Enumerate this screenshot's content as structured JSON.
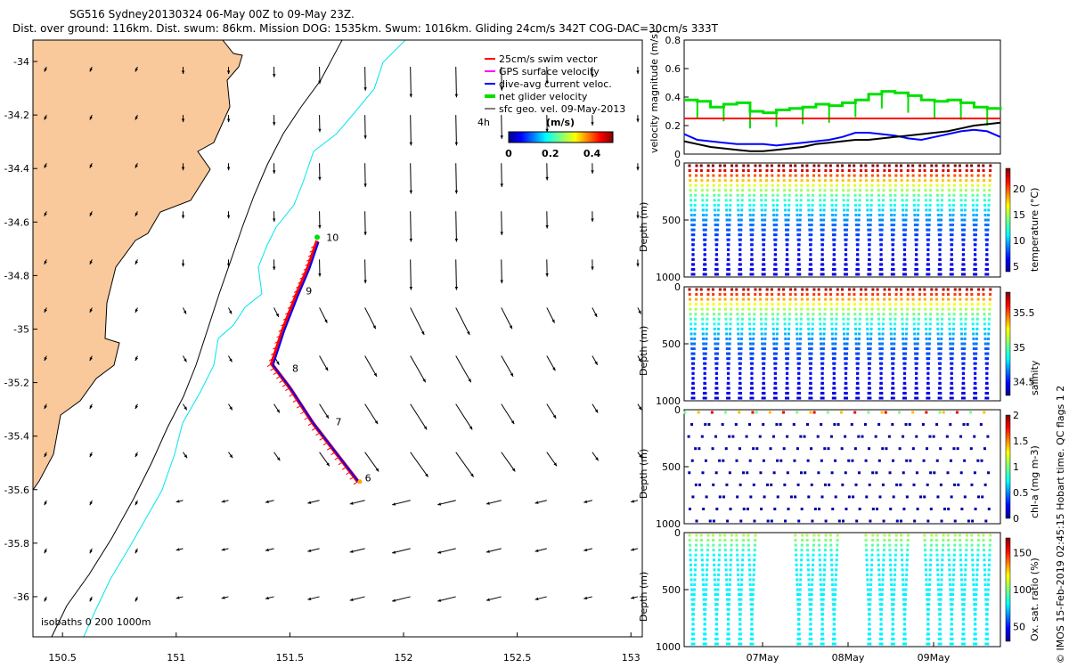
{
  "header": {
    "title": "SG516 Sydney20130324 06-May 00Z to 09-May 23Z.",
    "subtitle": "Dist. over ground: 116km. Dist. swum: 86km. Mission DOG: 1535km. Swum: 1016km. Gliding 24cm/s 342T COG-DAC=30cm/s 333T"
  },
  "credit": "© IMOS 15-Feb-2019 02:45:15 Hobart time. QC flags 1  2",
  "colors": {
    "land": "#f9c99b",
    "coast_line": "#000000",
    "isobath_200": "#000000",
    "isobath_1000": "#00e5ee",
    "swim": "#ff0000",
    "gps": "#ff00ff",
    "dac": "#0000ff",
    "net": "#00e000",
    "sfc": "#000000"
  },
  "map": {
    "legend": [
      {
        "label": "25cm/s swim vector",
        "color": "#ff0000"
      },
      {
        "label": "GPS surface velocity",
        "color": "#ff00ff"
      },
      {
        "label": "dive-avg current veloc.",
        "color": "#0000ff"
      },
      {
        "label": "net glider velocity",
        "color": "#00e000"
      },
      {
        "label": "sfc geo. vel. 09-May-2013",
        "color": "#000000"
      }
    ],
    "colorbar": {
      "label": "(m/s)",
      "ticks": [
        "0",
        "0.2",
        "0.4"
      ],
      "range": [
        0,
        0.5
      ]
    },
    "label_4h": "4h",
    "isobath_text": "isobaths 0   200  1000m",
    "day_labels": [
      {
        "label": "6",
        "lon": 151.83,
        "lat": -35.57
      },
      {
        "label": "7",
        "lon": 151.7,
        "lat": -35.36
      },
      {
        "label": "8",
        "lon": 151.51,
        "lat": -35.16
      },
      {
        "label": "9",
        "lon": 151.57,
        "lat": -34.87
      },
      {
        "label": "10",
        "lon": 151.66,
        "lat": -34.67
      }
    ]
  },
  "chart_data": [
    {
      "type": "scatter",
      "name": "map",
      "xlim": [
        150.37,
        153.05
      ],
      "ylim": [
        -36.15,
        -33.92
      ],
      "x_ticks": [
        "150.5",
        "151",
        "151.5",
        "152",
        "152.5",
        "153"
      ],
      "y_ticks": [
        "-34",
        "-34.2",
        "-34.4",
        "-34.6",
        "-34.8",
        "-35",
        "-35.2",
        "-35.4",
        "-35.6",
        "-35.8",
        "-36"
      ],
      "glider_track": [
        [
          151.8,
          -35.57
        ],
        [
          151.7,
          -35.46
        ],
        [
          151.6,
          -35.35
        ],
        [
          151.5,
          -35.22
        ],
        [
          151.42,
          -35.13
        ],
        [
          151.47,
          -35.0
        ],
        [
          151.53,
          -34.87
        ],
        [
          151.58,
          -34.77
        ],
        [
          151.62,
          -34.67
        ]
      ],
      "vector_field": {
        "lon": [
          150.43,
          150.63,
          150.83,
          151.03,
          151.23,
          151.43,
          151.63,
          151.83,
          152.03,
          152.23,
          152.43,
          152.63,
          152.83,
          153.03
        ],
        "lat": [
          -34.02,
          -34.2,
          -34.38,
          -34.56,
          -34.74,
          -34.92,
          -35.1,
          -35.28,
          -35.46,
          -35.64,
          -35.82,
          -36.0
        ]
      }
    },
    {
      "type": "line",
      "name": "velocity",
      "ylabel": "velocity magnitude (m/s)",
      "ylim": [
        0,
        0.8
      ],
      "y_ticks": [
        "0",
        "0.2",
        "0.4",
        "0.6",
        "0.8"
      ],
      "series": [
        {
          "name": "net glider velocity",
          "color": "#00e000",
          "values": [
            0.38,
            0.37,
            0.33,
            0.35,
            0.36,
            0.3,
            0.29,
            0.31,
            0.32,
            0.33,
            0.35,
            0.34,
            0.36,
            0.38,
            0.42,
            0.44,
            0.43,
            0.41,
            0.38,
            0.37,
            0.38,
            0.36,
            0.33,
            0.32,
            0.31
          ]
        },
        {
          "name": "25cm/s swim vector",
          "color": "#ff0000",
          "values": [
            0.25,
            0.25,
            0.25,
            0.25,
            0.25,
            0.25,
            0.25,
            0.25,
            0.25,
            0.25,
            0.25,
            0.25,
            0.25,
            0.25,
            0.25,
            0.25,
            0.25,
            0.25,
            0.25,
            0.25,
            0.25,
            0.25,
            0.25,
            0.25,
            0.25
          ]
        },
        {
          "name": "dive-avg current veloc.",
          "color": "#0000ff",
          "values": [
            0.14,
            0.1,
            0.09,
            0.08,
            0.07,
            0.07,
            0.07,
            0.06,
            0.07,
            0.08,
            0.09,
            0.1,
            0.12,
            0.15,
            0.15,
            0.14,
            0.13,
            0.11,
            0.1,
            0.12,
            0.14,
            0.16,
            0.17,
            0.16,
            0.12
          ]
        },
        {
          "name": "sfc",
          "color": "#000000",
          "values": [
            0.09,
            0.07,
            0.05,
            0.04,
            0.03,
            0.02,
            0.02,
            0.03,
            0.04,
            0.05,
            0.07,
            0.08,
            0.09,
            0.1,
            0.1,
            0.11,
            0.12,
            0.13,
            0.14,
            0.15,
            0.16,
            0.18,
            0.2,
            0.21,
            0.22
          ]
        }
      ]
    },
    {
      "type": "scatter",
      "name": "temperature",
      "ylabel": "Depth (m)",
      "clabel": "temperature (°C)",
      "y_ticks": [
        "0",
        "500",
        "1000"
      ],
      "crange": [
        4,
        24
      ],
      "cticks": [
        "5",
        "10",
        "15",
        "20"
      ]
    },
    {
      "type": "scatter",
      "name": "salinity",
      "ylabel": "Depth (m)",
      "clabel": "salinity",
      "y_ticks": [
        "0",
        "500",
        "1000"
      ],
      "crange": [
        34.3,
        35.8
      ],
      "cticks": [
        "34.5",
        "35",
        "35.5"
      ]
    },
    {
      "type": "scatter",
      "name": "chla",
      "ylabel": "Depth (m)",
      "clabel": "chl-a (mg m-3)",
      "y_ticks": [
        "0",
        "500",
        "1000"
      ],
      "crange": [
        0,
        2
      ],
      "cticks": [
        "0",
        "0.5",
        "1",
        "1.5",
        "2"
      ]
    },
    {
      "type": "scatter",
      "name": "oxygen",
      "ylabel": "Depth (m)",
      "clabel": "Ox. sat. ratio (%)",
      "y_ticks": [
        "0",
        "500",
        "1000"
      ],
      "crange": [
        30,
        170
      ],
      "cticks": [
        "50",
        "100",
        "150"
      ],
      "x_ticks": [
        "07May",
        "08May",
        "09May"
      ]
    }
  ]
}
